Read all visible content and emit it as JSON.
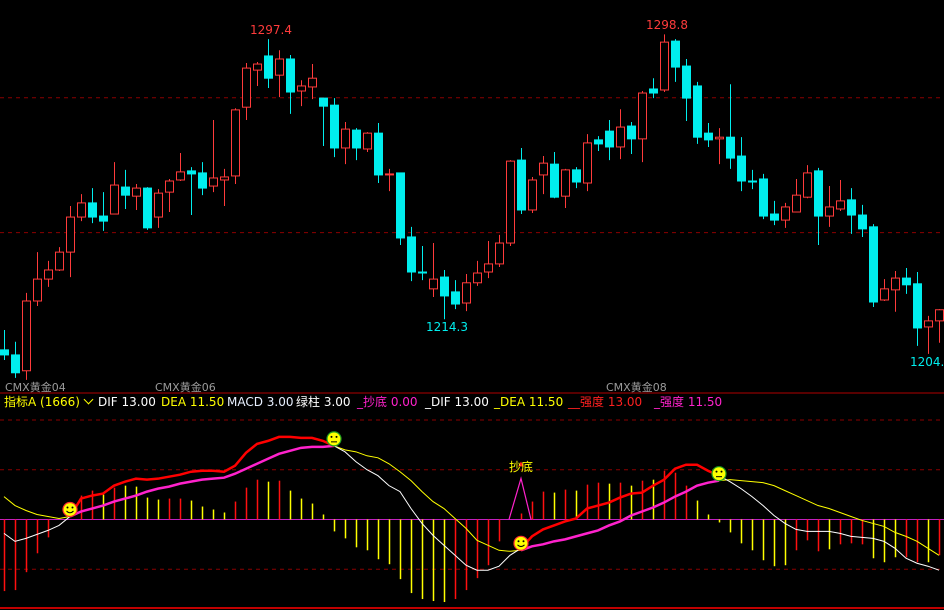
{
  "colors": {
    "up": "#ff3b3b",
    "down": "#00eeee",
    "grid": "#8b0000",
    "dif": "#ffffff",
    "dea": "#ffff00",
    "dif_bull": "#ff0000",
    "dea_bull": "#ff22cc",
    "signal": "#ff22cc"
  },
  "legend": {
    "indicator": "指标A (1666)",
    "dif": "DIF 13.00",
    "dea": "DEA 11.50",
    "macd": "MACD 3.00",
    "green_bar": "绿柱 3.00",
    "bottom_signal": "_抄底 0.00",
    "dif2": "_DIF 13.00",
    "dea2": "_DEA 11.50",
    "strength1": "__强度 13.00",
    "strength2": "_强度 11.50"
  },
  "contract_labels": [
    "CMX黄金04",
    "CMX黄金06",
    "CMX黄金08"
  ],
  "signal_text": "抄底",
  "chart_data": [
    {
      "type": "candlestick",
      "title": "",
      "price_grid": [
        1280,
        1240
      ],
      "ylim": [
        1192.7,
        1309.0
      ],
      "annotations": [
        {
          "text": "1297.4",
          "kind": "high",
          "index": 24
        },
        {
          "text": "1298.8",
          "kind": "high",
          "index": 60
        },
        {
          "text": "1214.3",
          "kind": "low",
          "index": 40
        },
        {
          "text": "1204.0",
          "kind": "low",
          "index": 84
        }
      ],
      "ohlc": [
        [
          1205.2,
          1203.7,
          1211.1,
          1202.2
        ],
        [
          1203.7,
          1198.4,
          1207.6,
          1196.9
        ],
        [
          1199.0,
          1219.7,
          1222.1,
          1196.3
        ],
        [
          1219.7,
          1226.2,
          1234.2,
          1218.2
        ],
        [
          1226.2,
          1228.9,
          1231.6,
          1223.9
        ],
        [
          1228.9,
          1234.2,
          1235.7,
          1228.6
        ],
        [
          1234.2,
          1244.6,
          1247.9,
          1226.8
        ],
        [
          1244.6,
          1248.8,
          1251.4,
          1243.4
        ],
        [
          1248.8,
          1244.6,
          1253.2,
          1242.8
        ],
        [
          1244.9,
          1243.4,
          1252.0,
          1240.5
        ],
        [
          1245.5,
          1254.1,
          1260.9,
          1245.5
        ],
        [
          1253.5,
          1251.1,
          1258.6,
          1247.0
        ],
        [
          1250.8,
          1253.2,
          1254.4,
          1246.7
        ],
        [
          1253.2,
          1241.4,
          1253.5,
          1240.8
        ],
        [
          1244.6,
          1251.7,
          1252.9,
          1241.4
        ],
        [
          1252.0,
          1255.3,
          1255.9,
          1246.1
        ],
        [
          1255.6,
          1258.0,
          1263.6,
          1255.3
        ],
        [
          1258.3,
          1257.4,
          1259.4,
          1245.2
        ],
        [
          1257.7,
          1253.2,
          1260.9,
          1251.1
        ],
        [
          1253.8,
          1256.2,
          1273.4,
          1252.0
        ],
        [
          1255.6,
          1256.5,
          1258.9,
          1247.9
        ],
        [
          1256.8,
          1276.4,
          1276.9,
          1254.4
        ],
        [
          1277.2,
          1288.8,
          1290.3,
          1273.4
        ],
        [
          1288.2,
          1290.0,
          1290.6,
          1283.5
        ],
        [
          1292.4,
          1285.8,
          1297.4,
          1282.9
        ],
        [
          1286.7,
          1291.5,
          1294.1,
          1280.2
        ],
        [
          1291.5,
          1281.7,
          1292.7,
          1275.2
        ],
        [
          1282.0,
          1283.5,
          1285.2,
          1277.5
        ],
        [
          1283.2,
          1285.8,
          1290.0,
          1279.6
        ],
        [
          1279.9,
          1277.5,
          1279.9,
          1265.7
        ],
        [
          1277.8,
          1265.1,
          1279.9,
          1262.4
        ],
        [
          1265.1,
          1270.7,
          1272.8,
          1260.3
        ],
        [
          1270.4,
          1265.1,
          1271.0,
          1261.5
        ],
        [
          1264.8,
          1269.5,
          1269.8,
          1263.9
        ],
        [
          1269.5,
          1257.1,
          1272.5,
          1254.7
        ],
        [
          1257.2,
          1257.4,
          1258.9,
          1252.3
        ],
        [
          1257.7,
          1238.4,
          1257.7,
          1236.3
        ],
        [
          1238.7,
          1228.3,
          1241.7,
          1225.6
        ],
        [
          1228.3,
          1228.0,
          1236.0,
          1225.9
        ],
        [
          1223.3,
          1226.2,
          1236.9,
          1220.9
        ],
        [
          1226.8,
          1221.2,
          1228.9,
          1214.3
        ],
        [
          1222.4,
          1218.8,
          1225.9,
          1217.3
        ],
        [
          1219.1,
          1225.1,
          1227.7,
          1216.7
        ],
        [
          1225.1,
          1228.0,
          1231.6,
          1224.2
        ],
        [
          1228.3,
          1230.7,
          1237.5,
          1226.5
        ],
        [
          1230.7,
          1236.9,
          1239.3,
          1229.8
        ],
        [
          1236.9,
          1261.2,
          1261.5,
          1236.0
        ],
        [
          1261.5,
          1246.7,
          1265.1,
          1245.5
        ],
        [
          1246.7,
          1255.6,
          1256.5,
          1245.8
        ],
        [
          1257.1,
          1260.6,
          1262.7,
          1251.4
        ],
        [
          1260.3,
          1250.5,
          1263.9,
          1250.2
        ],
        [
          1250.8,
          1258.6,
          1258.9,
          1247.3
        ],
        [
          1258.6,
          1255.0,
          1259.4,
          1253.2
        ],
        [
          1254.7,
          1266.6,
          1269.2,
          1252.3
        ],
        [
          1267.5,
          1266.3,
          1268.6,
          1264.2
        ],
        [
          1270.1,
          1265.4,
          1273.4,
          1261.5
        ],
        [
          1265.4,
          1271.3,
          1276.6,
          1261.8
        ],
        [
          1271.6,
          1267.8,
          1272.8,
          1263.3
        ],
        [
          1267.8,
          1281.4,
          1282.0,
          1260.9
        ],
        [
          1282.6,
          1281.4,
          1285.8,
          1279.9
        ],
        [
          1282.3,
          1296.5,
          1298.8,
          1281.7
        ],
        [
          1296.8,
          1289.1,
          1297.4,
          1284.7
        ],
        [
          1289.4,
          1279.9,
          1291.5,
          1273.1
        ],
        [
          1283.5,
          1268.3,
          1284.7,
          1266.3
        ],
        [
          1269.5,
          1267.5,
          1272.5,
          1265.4
        ],
        [
          1267.8,
          1268.3,
          1271.0,
          1260.3
        ],
        [
          1268.3,
          1262.1,
          1284.0,
          1258.9
        ],
        [
          1262.7,
          1255.3,
          1268.3,
          1252.3
        ],
        [
          1255.3,
          1255.0,
          1258.6,
          1252.9
        ],
        [
          1255.9,
          1244.9,
          1257.4,
          1244.0
        ],
        [
          1245.5,
          1243.7,
          1249.4,
          1242.2
        ],
        [
          1243.7,
          1247.6,
          1248.8,
          1241.4
        ],
        [
          1246.1,
          1251.1,
          1255.9,
          1246.1
        ],
        [
          1250.5,
          1257.7,
          1260.0,
          1250.2
        ],
        [
          1258.3,
          1244.9,
          1259.2,
          1236.3
        ],
        [
          1244.9,
          1247.6,
          1253.8,
          1241.7
        ],
        [
          1247.0,
          1249.4,
          1255.6,
          1246.4
        ],
        [
          1249.7,
          1245.2,
          1253.2,
          1239.6
        ],
        [
          1245.2,
          1241.1,
          1248.2,
          1238.7
        ],
        [
          1241.7,
          1219.4,
          1242.5,
          1217.9
        ],
        [
          1220.0,
          1223.3,
          1226.2,
          1219.7
        ],
        [
          1223.0,
          1226.5,
          1228.6,
          1216.5
        ],
        [
          1226.5,
          1224.5,
          1229.5,
          1221.8
        ],
        [
          1224.8,
          1211.7,
          1228.3,
          1206.4
        ],
        [
          1212.0,
          1213.8,
          1215.3,
          1204.0
        ],
        [
          1213.8,
          1217.1,
          1217.3,
          1207.3
        ]
      ]
    },
    {
      "type": "macd",
      "ylim": [
        -1.74,
        2.02
      ],
      "grid": [
        2,
        1,
        -1
      ],
      "dif": [
        -0.28,
        -0.44,
        -0.38,
        -0.3,
        -0.22,
        -0.12,
        0.06,
        0.42,
        0.48,
        0.52,
        0.68,
        0.76,
        0.82,
        0.8,
        0.82,
        0.86,
        0.9,
        0.96,
        0.98,
        0.98,
        0.96,
        1.08,
        1.34,
        1.52,
        1.58,
        1.66,
        1.66,
        1.64,
        1.64,
        1.58,
        1.48,
        1.36,
        1.16,
        1.0,
        0.88,
        0.68,
        0.56,
        0.22,
        -0.08,
        -0.32,
        -0.52,
        -0.72,
        -0.92,
        -1.02,
        -1.02,
        -0.94,
        -0.72,
        -0.58,
        -0.34,
        -0.2,
        -0.12,
        -0.04,
        0.02,
        0.22,
        0.28,
        0.34,
        0.44,
        0.52,
        0.54,
        0.68,
        0.8,
        1.02,
        1.1,
        1.1,
        0.98,
        0.88,
        0.76,
        0.62,
        0.46,
        0.28,
        0.08,
        -0.08,
        -0.2,
        -0.24,
        -0.24,
        -0.24,
        -0.28,
        -0.34,
        -0.36,
        -0.38,
        -0.44,
        -0.58,
        -0.78,
        -0.88,
        -0.94,
        -1.02
      ],
      "dea": [
        0.46,
        0.28,
        0.18,
        0.1,
        0.06,
        0.02,
        0.06,
        0.16,
        0.22,
        0.28,
        0.36,
        0.42,
        0.48,
        0.56,
        0.62,
        0.66,
        0.72,
        0.76,
        0.8,
        0.82,
        0.84,
        0.92,
        1.02,
        1.12,
        1.22,
        1.32,
        1.38,
        1.44,
        1.46,
        1.46,
        1.48,
        1.4,
        1.36,
        1.28,
        1.24,
        1.12,
        0.96,
        0.78,
        0.56,
        0.36,
        0.22,
        0.02,
        -0.18,
        -0.42,
        -0.52,
        -0.62,
        -0.64,
        -0.62,
        -0.54,
        -0.5,
        -0.44,
        -0.4,
        -0.34,
        -0.28,
        -0.22,
        -0.12,
        -0.04,
        0.08,
        0.16,
        0.24,
        0.34,
        0.46,
        0.56,
        0.68,
        0.74,
        0.78,
        0.8,
        0.78,
        0.76,
        0.74,
        0.68,
        0.58,
        0.48,
        0.38,
        0.28,
        0.22,
        0.14,
        0.06,
        -0.02,
        -0.08,
        -0.14,
        -0.26,
        -0.34,
        -0.44,
        -0.58,
        -0.72
      ],
      "hist": [
        -1.44,
        -1.42,
        -1.06,
        -0.68,
        -0.36,
        0,
        0,
        0.48,
        0.58,
        0.5,
        0.64,
        0.68,
        0.66,
        0.44,
        0.4,
        0.42,
        0.42,
        0.38,
        0.26,
        0.2,
        0.14,
        0.36,
        0.64,
        0.8,
        0.76,
        0.78,
        0.58,
        0.42,
        0.32,
        0.1,
        -0.24,
        -0.38,
        -0.56,
        -0.62,
        -0.8,
        -0.9,
        -1.2,
        -1.48,
        -1.6,
        -1.64,
        -1.66,
        -1.6,
        -1.42,
        -1.18,
        -0.92,
        -0.44,
        0,
        0.12,
        0.36,
        0.56,
        0.54,
        0.6,
        0.58,
        0.7,
        0.74,
        0.72,
        0.74,
        0.68,
        0.78,
        0.8,
        0.98,
        0.94,
        0.68,
        0.38,
        0.1,
        -0.06,
        -0.26,
        -0.48,
        -0.62,
        -0.82,
        -0.94,
        -0.92,
        -0.62,
        -0.42,
        -0.64,
        -0.6,
        -0.5,
        -0.48,
        -0.5,
        -0.78,
        -0.86,
        -0.76,
        -0.76,
        -0.86,
        -0.86,
        -0.72
      ],
      "hist_colors": "rrrrryyrryryyyyrryyyyrrryryyyyyyyyyyyyyyyrrrrryrrryryrryryryrrryyyyyyyyyrrryrrryyyrryrr",
      "crosses": [
        {
          "index": 6,
          "type": "golden"
        },
        {
          "index": 30,
          "type": "dead"
        },
        {
          "index": 47,
          "type": "golden"
        },
        {
          "index": 65,
          "type": "dead"
        }
      ],
      "bottom_signals": [
        47
      ]
    }
  ]
}
